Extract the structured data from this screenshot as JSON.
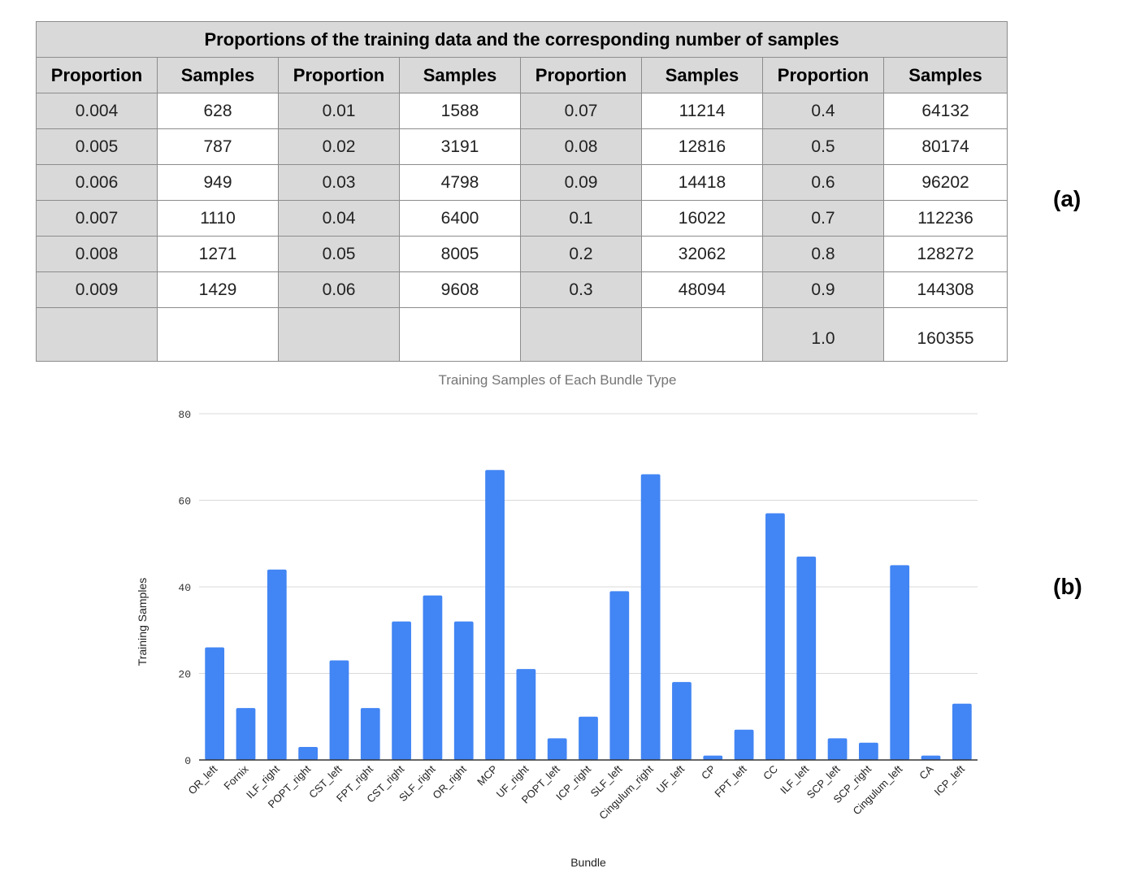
{
  "table": {
    "title": "Proportions of the training data and the corresponding number of samples",
    "headers": [
      "Proportion",
      "Samples",
      "Proportion",
      "Samples",
      "Proportion",
      "Samples",
      "Proportion",
      "Samples"
    ],
    "rows": [
      [
        "0.004",
        "628",
        "0.01",
        "1588",
        "0.07",
        "11214",
        "0.4",
        "64132"
      ],
      [
        "0.005",
        "787",
        "0.02",
        "3191",
        "0.08",
        "12816",
        "0.5",
        "80174"
      ],
      [
        "0.006",
        "949",
        "0.03",
        "4798",
        "0.09",
        "14418",
        "0.6",
        "96202"
      ],
      [
        "0.007",
        "1110",
        "0.04",
        "6400",
        "0.1",
        "16022",
        "0.7",
        "112236"
      ],
      [
        "0.008",
        "1271",
        "0.05",
        "8005",
        "0.2",
        "32062",
        "0.8",
        "128272"
      ],
      [
        "0.009",
        "1429",
        "0.06",
        "9608",
        "0.3",
        "48094",
        "0.9",
        "144308"
      ],
      [
        "",
        "",
        "",
        "",
        "",
        "",
        "1.0",
        "160355"
      ]
    ]
  },
  "labels": {
    "a": "(a)",
    "b": "(b)"
  },
  "chart_data": {
    "type": "bar",
    "title": "Training Samples of Each Bundle Type",
    "xlabel": "Bundle",
    "ylabel": "Training Samples",
    "ylim": [
      0,
      80
    ],
    "yticks": [
      0,
      20,
      40,
      60,
      80
    ],
    "grid": true,
    "bar_color": "#4285f4",
    "categories": [
      "OR_left",
      "Fornix",
      "ILF_right",
      "POPT_right",
      "CST_left",
      "FPT_right",
      "CST_right",
      "SLF_right",
      "OR_right",
      "MCP",
      "UF_right",
      "POPT_left",
      "ICP_right",
      "SLF_left",
      "Cingulum_right",
      "UF_left",
      "CP",
      "FPT_left",
      "CC",
      "ILF_left",
      "SCP_left",
      "SCP_right",
      "Cingulum_left",
      "CA",
      "ICP_left"
    ],
    "values": [
      26,
      12,
      44,
      3,
      23,
      12,
      32,
      38,
      32,
      67,
      21,
      5,
      10,
      39,
      66,
      18,
      1,
      7,
      57,
      47,
      5,
      4,
      45,
      1,
      13
    ]
  }
}
